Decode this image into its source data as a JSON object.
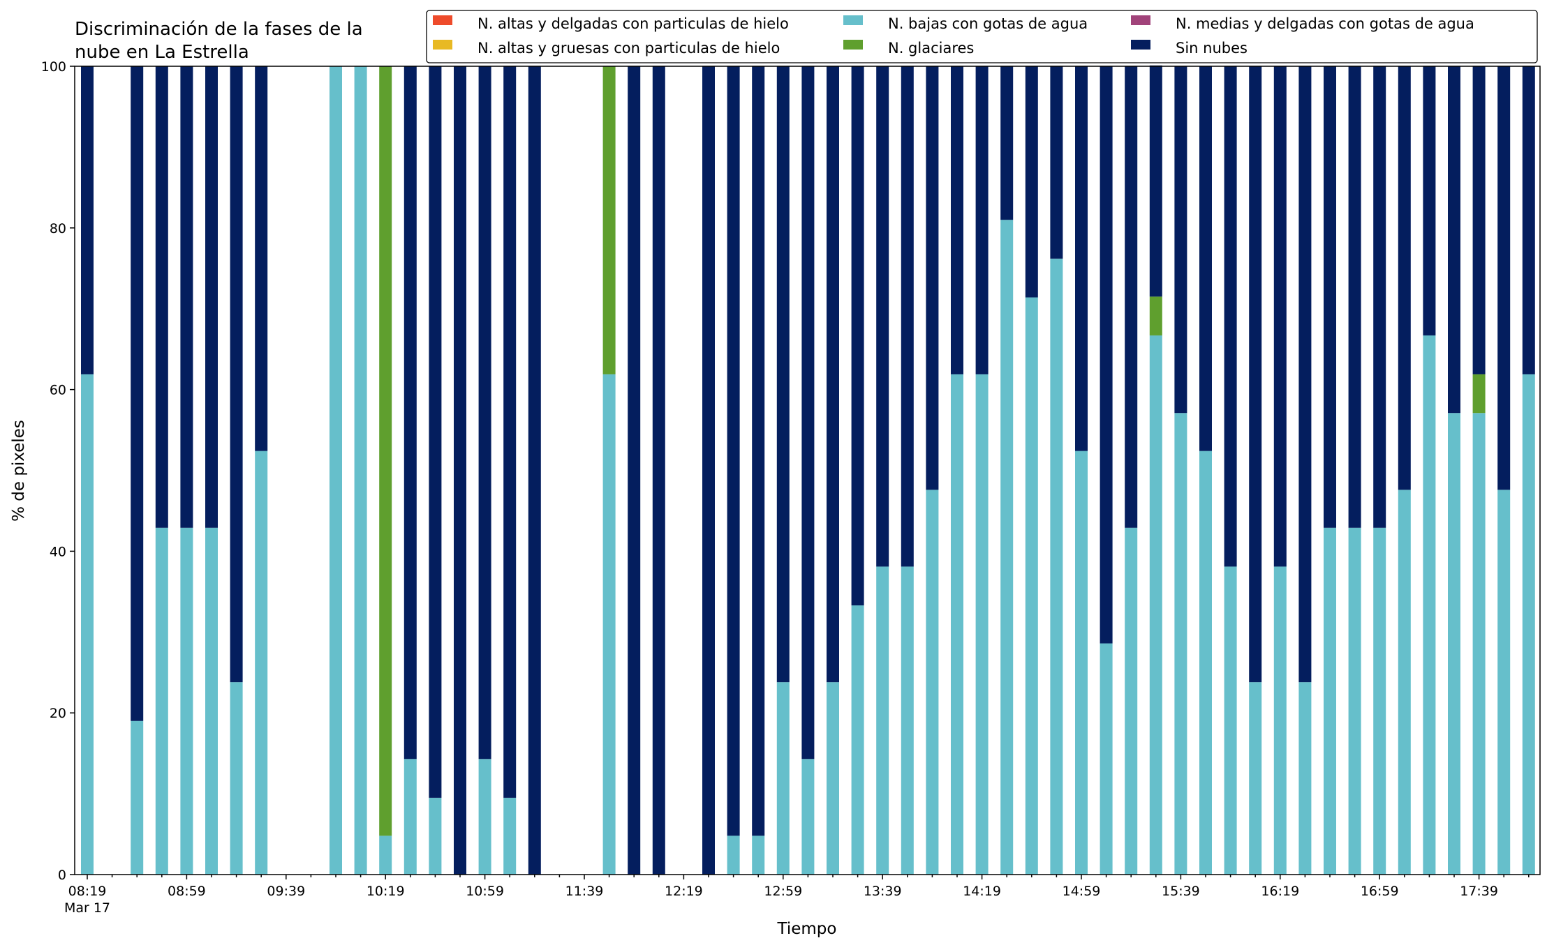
{
  "chart_data": {
    "type": "bar",
    "stacked": true,
    "title_lines": [
      "Discriminación de la fases de la",
      "nube en La Estrella"
    ],
    "xlabel": "Tiempo",
    "ylabel": "% de pixeles",
    "ylim": [
      0,
      100
    ],
    "yticks": [
      0,
      20,
      40,
      60,
      80,
      100
    ],
    "grid": false,
    "legend_position": "top-right",
    "x_start": "08:19",
    "x_interval_minutes": 10,
    "x_count": 59,
    "x_tick_labels": [
      "08:19",
      "08:59",
      "09:39",
      "10:19",
      "10:59",
      "11:39",
      "12:19",
      "12:59",
      "13:39",
      "14:19",
      "14:59",
      "15:39",
      "16:19",
      "16:59",
      "17:39"
    ],
    "x_date_label": "Mar 17",
    "series": [
      {
        "name": "N. altas y delgadas con particulas de hielo",
        "color": "#ee4b2b",
        "values": [
          0,
          null,
          0,
          0,
          0,
          0,
          0,
          0,
          null,
          null,
          0,
          0,
          0,
          0,
          0,
          0,
          0,
          0,
          0,
          null,
          null,
          0,
          0,
          0,
          null,
          0,
          0,
          0,
          0,
          0,
          0,
          0,
          0,
          0,
          0,
          0,
          0,
          0,
          0,
          0,
          0,
          0,
          0,
          0,
          0,
          0,
          0,
          0,
          0,
          0,
          0,
          0,
          0,
          0,
          0,
          0,
          0,
          0,
          0
        ]
      },
      {
        "name": "N. altas y gruesas con particulas de hielo",
        "color": "#e8b923",
        "values": [
          0,
          null,
          0,
          0,
          0,
          0,
          0,
          0,
          null,
          null,
          0,
          0,
          0,
          0,
          0,
          0,
          0,
          0,
          0,
          null,
          null,
          0,
          0,
          0,
          null,
          0,
          0,
          0,
          0,
          0,
          0,
          0,
          0,
          0,
          0,
          0,
          0,
          0,
          0,
          0,
          0,
          0,
          0,
          0,
          0,
          0,
          0,
          0,
          0,
          0,
          0,
          0,
          0,
          0,
          0,
          0,
          0,
          0,
          0
        ]
      },
      {
        "name": "N. bajas con gotas de agua",
        "color": "#66bfcb",
        "values": [
          61.9,
          null,
          19.0,
          42.9,
          42.9,
          42.9,
          23.8,
          52.4,
          null,
          null,
          100,
          100,
          4.8,
          14.3,
          9.5,
          0,
          14.3,
          9.5,
          0,
          null,
          null,
          61.9,
          0,
          0,
          null,
          0,
          4.8,
          4.8,
          23.8,
          14.3,
          23.8,
          33.3,
          38.1,
          38.1,
          47.6,
          61.9,
          61.9,
          81.0,
          71.4,
          76.2,
          52.4,
          28.6,
          42.9,
          66.7,
          57.1,
          52.4,
          38.1,
          23.8,
          38.1,
          23.8,
          42.9,
          42.9,
          42.9,
          47.6,
          66.7,
          57.1,
          57.1,
          47.6,
          61.9
        ]
      },
      {
        "name": "N. glaciares",
        "color": "#5f9f2e",
        "values": [
          0,
          null,
          0,
          0,
          0,
          0,
          0,
          0,
          null,
          null,
          0,
          0,
          95.2,
          0,
          0,
          0,
          0,
          0,
          0,
          null,
          null,
          38.1,
          0,
          0,
          null,
          0,
          0,
          0,
          0,
          0,
          0,
          0,
          0,
          0,
          0,
          0,
          0,
          0,
          0,
          0,
          0,
          0,
          0,
          4.8,
          0,
          0,
          0,
          0,
          0,
          0,
          0,
          0,
          0,
          0,
          0,
          0,
          4.8,
          0,
          0
        ]
      },
      {
        "name": "N. medias y delgadas con gotas de agua",
        "color": "#a1437a",
        "values": [
          0,
          null,
          0,
          0,
          0,
          0,
          0,
          0,
          null,
          null,
          0,
          0,
          0,
          0,
          0,
          0,
          0,
          0,
          0,
          null,
          null,
          0,
          0,
          0,
          null,
          0,
          0,
          0,
          0,
          0,
          0,
          0,
          0,
          0,
          0,
          0,
          0,
          0,
          0,
          0,
          0,
          0,
          0,
          0,
          0,
          0,
          0,
          0,
          0,
          0,
          0,
          0,
          0,
          0,
          0,
          0,
          0,
          0,
          0
        ]
      },
      {
        "name": "Sin nubes",
        "color": "#041e5e",
        "values": [
          38.1,
          null,
          81.0,
          57.1,
          57.1,
          57.1,
          76.2,
          47.6,
          null,
          null,
          0,
          0,
          0,
          85.7,
          90.5,
          100,
          85.7,
          90.5,
          100,
          null,
          null,
          0,
          100,
          100,
          null,
          100,
          95.2,
          95.2,
          76.2,
          85.7,
          76.2,
          66.7,
          61.9,
          61.9,
          52.4,
          38.1,
          38.1,
          19.0,
          28.6,
          23.8,
          47.6,
          71.4,
          57.1,
          28.6,
          42.9,
          47.6,
          61.9,
          76.2,
          61.9,
          76.2,
          57.1,
          57.1,
          57.1,
          52.4,
          33.3,
          42.9,
          38.1,
          52.4,
          38.1
        ]
      }
    ]
  }
}
